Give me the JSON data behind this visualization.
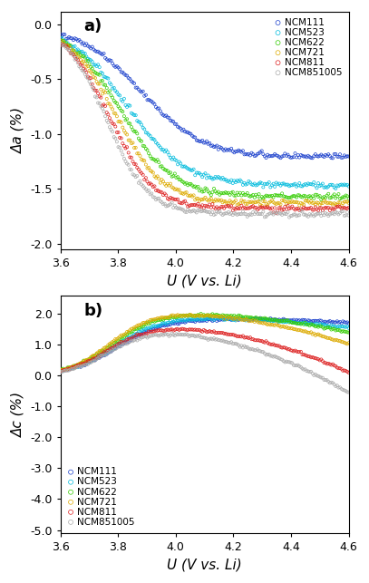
{
  "labels": [
    "NCM111",
    "NCM523",
    "NCM622",
    "NCM721",
    "NCM811",
    "NCM851005"
  ],
  "colors": [
    "#1a3fcc",
    "#00bbdd",
    "#33cc00",
    "#ddaa00",
    "#dd2020",
    "#aaaaaa"
  ],
  "title_a": "a)",
  "title_b": "b)",
  "xlabel": "U (V vs. Li)",
  "ylabel_a": "Δa (%)",
  "ylabel_b": "Δc (%)",
  "xlim": [
    3.6,
    4.6
  ],
  "ylim_a": [
    -2.05,
    0.12
  ],
  "ylim_b": [
    -5.1,
    2.6
  ],
  "yticks_a": [
    0.0,
    -0.5,
    -1.0,
    -1.5,
    -2.0
  ],
  "yticks_b": [
    2.0,
    1.0,
    0.0,
    -1.0,
    -2.0,
    -3.0,
    -4.0,
    -5.0
  ],
  "xticks": [
    3.6,
    3.8,
    4.0,
    4.2,
    4.4,
    4.6
  ],
  "marker_size": 5,
  "marker": "o",
  "background_color": "#ffffff",
  "n_points": 200
}
